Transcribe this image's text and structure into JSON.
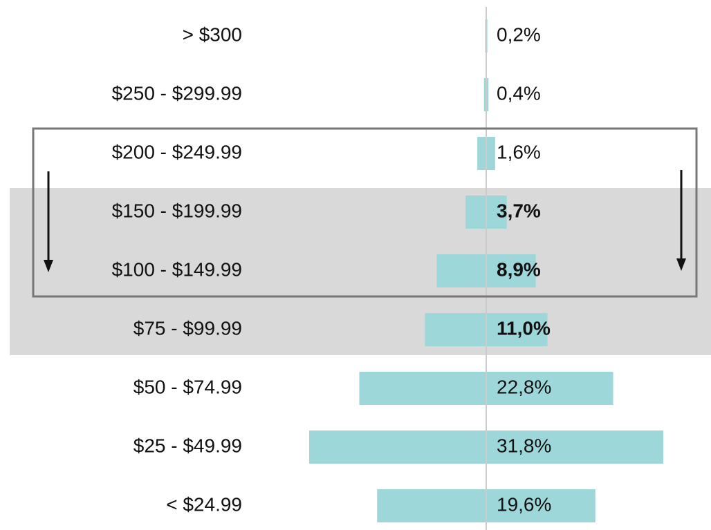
{
  "chart_data": {
    "type": "bar",
    "orientation": "horizontal",
    "color": "#9dd7da",
    "categories": [
      "> $300",
      "$250 - $299.99",
      "$200 - $249.99",
      "$150 - $199.99",
      "$100 - $149.99",
      "$75 - $99.99",
      "$50 - $74.99",
      "$25 - $49.99",
      "< $24.99"
    ],
    "values": [
      0.2,
      0.4,
      1.6,
      3.7,
      8.9,
      11.0,
      22.8,
      31.8,
      19.6
    ],
    "value_labels": [
      "0,2%",
      "0,4%",
      "1,6%",
      "3,7%",
      "8,9%",
      "11,0%",
      "22,8%",
      "31,8%",
      "19,6%"
    ]
  }
}
